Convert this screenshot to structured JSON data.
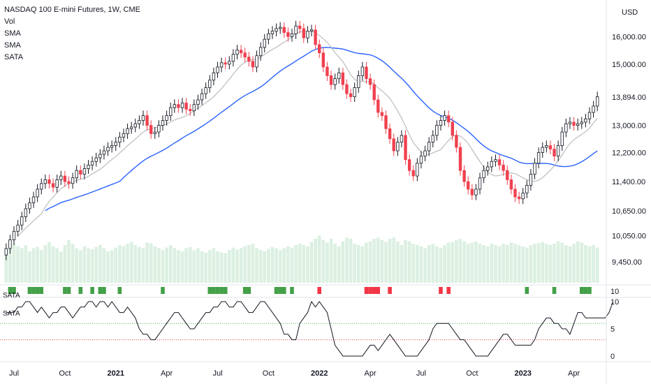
{
  "legend": {
    "title": "NASDAQ 100 E-mini Futures, 1W, CME",
    "items": [
      "Vol",
      "SMA",
      "SMA",
      "SATA"
    ]
  },
  "currency": "USD",
  "pane_labels": {
    "sata_bar": "SATA",
    "sata_line": "SATA"
  },
  "colors": {
    "up": "#ffffff",
    "up_border": "#131722",
    "down": "#f0414f",
    "sma_long": "#2962ff",
    "sma_short": "#b0b0b0",
    "volume": "#dcf0e2",
    "sata_green": "#43a047",
    "sata_red": "#f23645",
    "upper_guide": "#4caf50",
    "lower_guide": "#f23645"
  },
  "chart_data": [
    {
      "type": "candlestick",
      "title": "NASDAQ 100 E-mini Futures, 1W, CME",
      "y_scale": "log",
      "ylim": [
        9000,
        17200
      ],
      "y_ticks": [
        "16,000.00",
        "15,000.00",
        "13,894.00",
        "13,000.00",
        "12,200.00",
        "11,400.00",
        "10,650.00",
        "10,050.00",
        "9,450.00"
      ],
      "y_tick_values": [
        16000,
        15000,
        13894,
        13000,
        12200,
        11400,
        10650,
        10050,
        9450
      ],
      "x_ticks": [
        {
          "label": "Jul",
          "week": 2
        },
        {
          "label": "Oct",
          "week": 15
        },
        {
          "label": "2021",
          "week": 28,
          "bold": true
        },
        {
          "label": "Apr",
          "week": 41
        },
        {
          "label": "Jul",
          "week": 54
        },
        {
          "label": "Oct",
          "week": 67
        },
        {
          "label": "2022",
          "week": 80,
          "bold": true
        },
        {
          "label": "Apr",
          "week": 93
        },
        {
          "label": "Jul",
          "week": 106
        },
        {
          "label": "Oct",
          "week": 119
        },
        {
          "label": "2023",
          "week": 132,
          "bold": true
        },
        {
          "label": "Apr",
          "week": 145
        }
      ],
      "weeks": 152,
      "close": [
        9750,
        9950,
        10150,
        10300,
        10500,
        10700,
        10850,
        11000,
        11200,
        11350,
        11450,
        11350,
        11250,
        11450,
        11550,
        11400,
        11350,
        11500,
        11700,
        11600,
        11750,
        11850,
        11950,
        12050,
        12150,
        12250,
        12350,
        12400,
        12500,
        12650,
        12750,
        12900,
        12950,
        13050,
        13150,
        13300,
        13000,
        12750,
        12800,
        13000,
        13150,
        13300,
        13550,
        13650,
        13550,
        13700,
        13500,
        13450,
        13650,
        13800,
        14000,
        14200,
        14450,
        14700,
        14900,
        15050,
        15000,
        15100,
        15350,
        15500,
        15400,
        15250,
        15100,
        14900,
        15300,
        15600,
        15900,
        16100,
        16200,
        16300,
        16350,
        16150,
        16000,
        16100,
        16400,
        16300,
        15950,
        16200,
        16250,
        15700,
        15400,
        14900,
        14600,
        14300,
        14500,
        14700,
        14300,
        14000,
        13900,
        14200,
        14600,
        14900,
        14500,
        14300,
        13800,
        13400,
        13300,
        12900,
        12600,
        12250,
        12500,
        12700,
        12000,
        11700,
        11550,
        11900,
        12100,
        12250,
        12500,
        12700,
        13000,
        13150,
        13300,
        13100,
        12700,
        12350,
        11700,
        11400,
        11200,
        11050,
        11200,
        11500,
        11700,
        11800,
        11950,
        12000,
        11850,
        11700,
        11450,
        11200,
        11000,
        10950,
        11100,
        11300,
        11600,
        11900,
        12200,
        12350,
        12400,
        12300,
        12100,
        12400,
        12800,
        13050,
        13100,
        13000,
        13050,
        13100,
        13200,
        13400,
        13600,
        13900
      ],
      "volume": [
        0.55,
        0.6,
        0.62,
        0.58,
        0.55,
        0.6,
        0.5,
        0.55,
        0.57,
        0.52,
        0.6,
        0.65,
        0.58,
        0.55,
        0.5,
        0.6,
        0.68,
        0.62,
        0.55,
        0.52,
        0.58,
        0.55,
        0.53,
        0.57,
        0.6,
        0.55,
        0.5,
        0.52,
        0.56,
        0.6,
        0.58,
        0.62,
        0.65,
        0.6,
        0.57,
        0.55,
        0.64,
        0.63,
        0.58,
        0.55,
        0.52,
        0.56,
        0.6,
        0.55,
        0.52,
        0.5,
        0.55,
        0.57,
        0.52,
        0.55,
        0.5,
        0.48,
        0.52,
        0.55,
        0.5,
        0.48,
        0.47,
        0.52,
        0.56,
        0.53,
        0.55,
        0.58,
        0.6,
        0.62,
        0.55,
        0.52,
        0.5,
        0.54,
        0.57,
        0.55,
        0.52,
        0.55,
        0.58,
        0.56,
        0.6,
        0.62,
        0.6,
        0.58,
        0.65,
        0.7,
        0.75,
        0.68,
        0.64,
        0.7,
        0.62,
        0.58,
        0.66,
        0.72,
        0.7,
        0.62,
        0.6,
        0.58,
        0.64,
        0.66,
        0.7,
        0.72,
        0.68,
        0.65,
        0.7,
        0.72,
        0.66,
        0.6,
        0.68,
        0.66,
        0.62,
        0.6,
        0.58,
        0.55,
        0.6,
        0.62,
        0.58,
        0.56,
        0.6,
        0.64,
        0.65,
        0.68,
        0.7,
        0.66,
        0.62,
        0.64,
        0.66,
        0.62,
        0.6,
        0.58,
        0.62,
        0.6,
        0.58,
        0.62,
        0.6,
        0.64,
        0.62,
        0.6,
        0.58,
        0.56,
        0.6,
        0.62,
        0.63,
        0.65,
        0.62,
        0.6,
        0.62,
        0.66,
        0.64,
        0.6,
        0.58,
        0.62,
        0.66,
        0.64,
        0.6,
        0.58,
        0.6,
        0.56
      ]
    },
    {
      "type": "line",
      "title": "SATA",
      "y_ticks": [
        "10",
        "5",
        "0"
      ],
      "ylim": [
        0,
        10
      ],
      "guides": [
        6,
        3
      ],
      "scale_label_top": "10",
      "values": [
        8,
        8,
        8,
        9,
        9,
        10,
        10,
        9,
        8,
        9,
        8,
        7,
        8,
        8,
        9,
        9,
        8,
        7,
        8,
        9,
        9,
        10,
        10,
        9,
        10,
        10,
        9,
        10,
        9,
        8,
        8,
        9,
        8,
        7,
        5,
        4,
        4,
        3,
        3,
        4,
        5,
        6,
        7,
        8,
        8,
        7,
        6,
        5,
        5,
        6,
        7,
        8,
        8,
        9,
        9,
        10,
        10,
        9,
        9,
        10,
        10,
        9,
        8,
        8,
        9,
        10,
        10,
        9,
        8,
        7,
        6,
        4,
        4,
        3,
        3,
        6,
        7,
        8,
        10,
        9,
        10,
        9,
        8,
        5,
        2,
        1,
        0,
        0,
        0,
        0,
        0,
        0,
        1,
        2,
        2,
        1,
        2,
        3,
        4,
        3,
        2,
        1,
        0,
        0,
        0,
        0,
        1,
        2,
        3,
        5,
        6,
        6,
        6,
        6,
        5,
        4,
        3,
        3,
        2,
        1,
        0,
        0,
        0,
        0,
        1,
        2,
        3,
        4,
        4,
        3,
        2,
        2,
        2,
        2,
        2,
        3,
        5,
        6,
        7,
        7,
        6,
        6,
        5,
        5,
        4,
        6,
        8,
        8,
        7,
        7,
        7,
        7,
        7,
        7,
        8,
        10
      ]
    },
    {
      "type": "heatmap",
      "title": "SATA",
      "green_weeks": [
        1,
        2,
        6,
        7,
        8,
        9,
        15,
        16,
        19,
        22,
        24,
        25,
        29,
        40,
        52,
        53,
        54,
        55,
        56,
        61,
        62,
        69,
        70,
        71,
        73,
        133,
        140,
        147,
        148,
        149
      ],
      "red_weeks": [
        80,
        92,
        93,
        94,
        95,
        98,
        111,
        113
      ]
    }
  ]
}
